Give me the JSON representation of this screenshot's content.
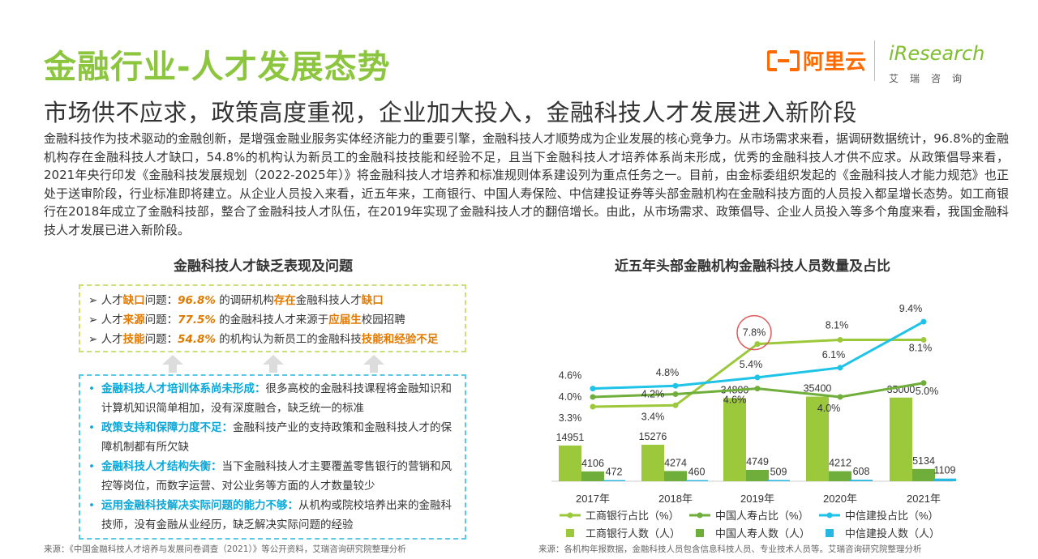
{
  "header": {
    "title": "金融行业-人才发展态势",
    "subtitle": "市场供不应求，政策高度重视，企业加大投入，金融科技人才发展进入新阶段"
  },
  "logos": {
    "alibaba": "阿里云",
    "iresearch": "iResearch",
    "iresearch_cn": "艾瑞咨询"
  },
  "intro": "金融科技作为技术驱动的金融创新，是增强金融业服务实体经济能力的重要引擎，金融科技人才顺势成为企业发展的核心竞争力。从市场需求来看，据调研数据统计，96.8%的金融机构存在金融科技人才缺口，54.8%的机构认为新员工的金融科技技能和经验不足，且当下金融科技人才培养体系尚未形成，优秀的金融科技人才供不应求。从政策倡导来看，2021年央行印发《金融科技发展规划（2022-2025年）》将金融科技人才培养和标准规则体系建设列为重点任务之一。目前，由金标委组织发起的《金融科技人才能力规范》也正处于送审阶段，行业标准即将建立。从企业人员投入来看，近五年来，工商银行、中国人寿保险、中信建投证券等头部金融机构在金融科技方面的人员投入都呈增长态势。如工商银行在2018年成立了金融科技部，整合了金融科技人才队伍，在2019年实现了金融科技人才的翻倍增长。由此，从市场需求、政策倡导、企业人员投入等多个角度来看，我国金融科技人才发展已进入新阶段。",
  "left_panel": {
    "title": "金融科技人才缺乏表现及问题",
    "issues": [
      {
        "p1": "人才",
        "k": "缺口",
        "p2": "问题：",
        "pct": "96.8%",
        "p3": "的调研机构",
        "k2": "存在",
        "p4": "金融科技人才",
        "k3": "缺口"
      },
      {
        "p1": "人才",
        "k": "来源",
        "p2": "问题：",
        "pct": "77.5%",
        "p3": "的金融科技人才来源于",
        "k2": "应届生",
        "p4": "校园招聘",
        "k3": ""
      },
      {
        "p1": "人才",
        "k": "技能",
        "p2": "问题：",
        "pct": "54.8%",
        "p3": "的机构认为新员工的金融科技",
        "k2": "技能和经验不足",
        "p4": "",
        "k3": ""
      }
    ],
    "problems": [
      {
        "head": "金融科技人才培训体系尚未形成：",
        "text": "很多高校的金融科技课程将金融知识和计算机知识简单相加，没有深度融合，缺乏统一的标准"
      },
      {
        "head": "政策支持和保障力度不足：",
        "text": "金融科技产业的支持政策和金融科技人才的保障机制都有所欠缺"
      },
      {
        "head": "金融科技人才结构失衡：",
        "text": "当下金融科技人才主要覆盖零售银行的营销和风控等岗位，而数字运营、对公业务等方面的人才数量较少"
      },
      {
        "head": "运用金融科技解决实际问题的能力不够：",
        "text": "从机构或院校培养出来的金融科技师，没有金融从业经历，缺乏解决实际问题的经验"
      }
    ],
    "source": "来源：《中国金融科技人才培养与发展问卷调查（2021）》等公开资料，艾瑞咨询研究院整理分析"
  },
  "chart_data": {
    "type": "bar+line",
    "title": "近五年头部金融机构金融科技人员数量及占比",
    "categories": [
      "2017年",
      "2018年",
      "2019年",
      "2020年",
      "2021年"
    ],
    "bar_series": [
      {
        "name": "工商银行人数（人）",
        "color": "#9cc83b",
        "values": [
          14951,
          15276,
          34800,
          35400,
          35000
        ]
      },
      {
        "name": "中国人寿人数（人）",
        "color": "#6fae3a",
        "values": [
          4106,
          4274,
          4749,
          4212,
          5134
        ]
      },
      {
        "name": "中信建投人数（人）",
        "color": "#27b7e0",
        "values": [
          472,
          460,
          509,
          608,
          1109
        ]
      }
    ],
    "line_series": [
      {
        "name": "工商银行占比（%）",
        "color": "#9cc83b",
        "values": [
          3.3,
          3.4,
          7.8,
          8.1,
          8.1
        ],
        "labels": [
          "3.3%",
          "3.4%",
          "7.8%",
          "8.1%",
          "8.1%"
        ]
      },
      {
        "name": "中国人寿占比（%）",
        "color": "#6fae3a",
        "values": [
          4.0,
          4.2,
          4.6,
          4.0,
          5.0
        ],
        "labels": [
          "4.0%",
          "4.2%",
          "4.6%",
          "4.0%",
          "5.0%"
        ]
      },
      {
        "name": "中信建投占比（%）",
        "color": "#1fc3e8",
        "values": [
          4.6,
          4.8,
          5.4,
          6.1,
          9.4
        ],
        "labels": [
          "4.6%",
          "4.8%",
          "5.4%",
          "6.1%",
          "9.4%"
        ]
      }
    ],
    "highlight": "7.8%",
    "source": "来源：各机构年报数据，金融科技人员包含信息科技人员、专业技术人员等。艾瑞咨询研究院整理分析"
  }
}
